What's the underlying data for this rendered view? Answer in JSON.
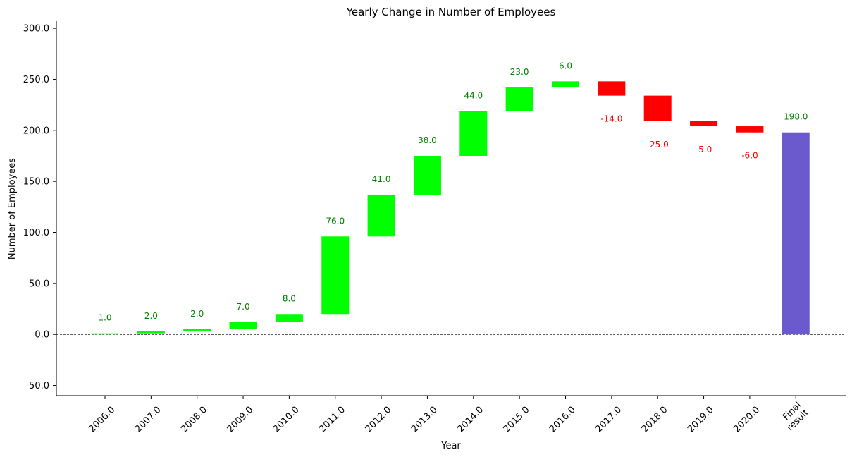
{
  "chart_data": {
    "type": "bar",
    "subtype": "waterfall",
    "title": "Yearly Change in Number of Employees",
    "xlabel": "Year",
    "ylabel": "Number of Employees",
    "ylim": [
      -60,
      307
    ],
    "yticks": [
      -50,
      0,
      50,
      100,
      150,
      200,
      250,
      300
    ],
    "ytick_labels": [
      "-50.0",
      "0.0",
      "50.0",
      "100.0",
      "150.0",
      "200.0",
      "250.0",
      "300.0"
    ],
    "categories": [
      "2006.0",
      "2007.0",
      "2008.0",
      "2009.0",
      "2010.0",
      "2011.0",
      "2012.0",
      "2013.0",
      "2014.0",
      "2015.0",
      "2016.0",
      "2017.0",
      "2018.0",
      "2019.0",
      "2020.0",
      "Final result"
    ],
    "values": [
      1,
      2,
      2,
      7,
      8,
      76,
      41,
      38,
      44,
      23,
      6,
      -14,
      -25,
      -5,
      -6,
      198
    ],
    "value_labels": [
      "1.0",
      "2.0",
      "2.0",
      "7.0",
      "8.0",
      "76.0",
      "41.0",
      "38.0",
      "44.0",
      "23.0",
      "6.0",
      "-14.0",
      "-25.0",
      "-5.0",
      "-6.0",
      "198.0"
    ],
    "total_index": 15,
    "grid": false,
    "zero_line": true,
    "colors": {
      "increase": "#00ff00",
      "decrease": "#ff0000",
      "total": "#6a5acd",
      "increase_label": "#008000",
      "decrease_label": "#ff0000",
      "total_label": "#008000"
    }
  }
}
